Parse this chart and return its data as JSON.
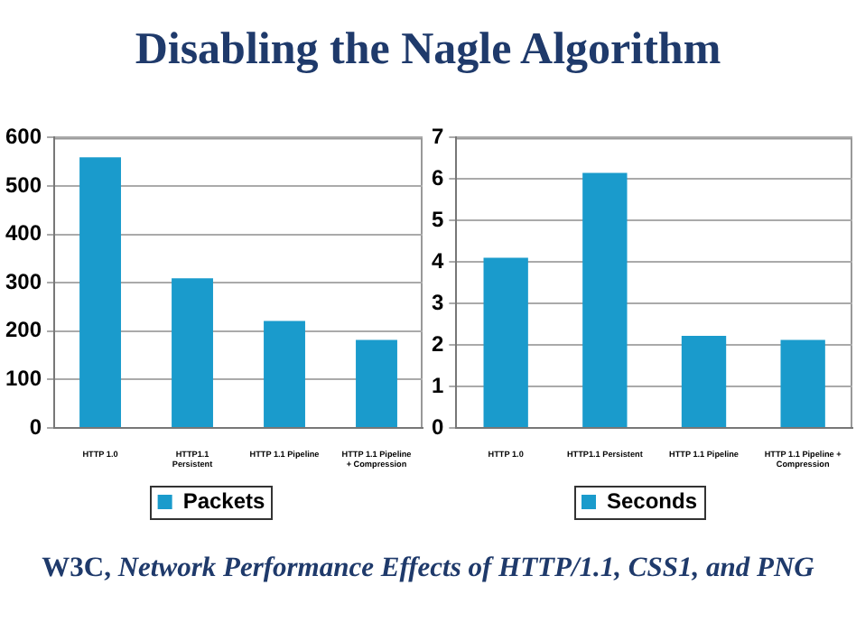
{
  "chart_data": [
    {
      "type": "bar",
      "title": "Disabling the Nagle Algorithm",
      "categories": [
        "HTTP 1.0",
        "HTTP1.1\nPersistent",
        "HTTP 1.1 Pipeline",
        "HTTP 1.1 Pipeline\n+ Compression"
      ],
      "series": [
        {
          "name": "Packets",
          "color": "#1a9bcc",
          "values": [
            559,
            309,
            221,
            182
          ]
        }
      ],
      "ylim": [
        0,
        600
      ],
      "yticks": [
        0,
        100,
        200,
        300,
        400,
        500,
        600
      ],
      "grid": "y",
      "legend": "bottom"
    },
    {
      "type": "bar",
      "categories": [
        "HTTP 1.0",
        "HTTP1.1 Persistent",
        "HTTP 1.1 Pipeline",
        "HTTP 1.1 Pipeline +\nCompression"
      ],
      "series": [
        {
          "name": "Seconds",
          "color": "#1a9bcc",
          "values": [
            4.1,
            6.15,
            2.22,
            2.12
          ]
        }
      ],
      "ylim": [
        0,
        7
      ],
      "yticks": [
        0,
        1,
        2,
        3,
        4,
        5,
        6,
        7
      ],
      "grid": "y",
      "legend": "bottom",
      "annotations": [
        "W3C, Network Performance Effects of HTTP/1.1, CSS1, and PNG"
      ]
    }
  ]
}
